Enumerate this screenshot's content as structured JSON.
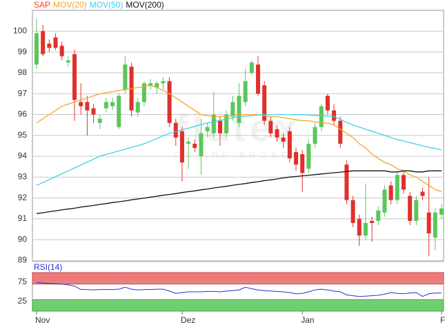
{
  "chart_data": {
    "type": "candlestick",
    "categories": [
      "Nov",
      null,
      null,
      null,
      null,
      null,
      null,
      null,
      null,
      null,
      null,
      null,
      null,
      null,
      null,
      null,
      null,
      null,
      null,
      null,
      null,
      null,
      null,
      "Dez",
      null,
      null,
      null,
      null,
      null,
      null,
      null,
      null,
      null,
      null,
      null,
      null,
      null,
      null,
      null,
      null,
      null,
      null,
      "Jan",
      null,
      null,
      null,
      null,
      null,
      null,
      null,
      null,
      null,
      null,
      null,
      null,
      null,
      null,
      null,
      null,
      null,
      null,
      null,
      null,
      null,
      "F"
    ],
    "candles": {
      "name": "SAP",
      "color": "#ff3b1f",
      "up_color": "#5cc65c",
      "down_color": "#e0302c",
      "open": [
        98.4,
        100.0,
        99.4,
        99.7,
        99.3,
        98.5,
        98.9,
        96.6,
        96.6,
        96.3,
        95.6,
        96.3,
        96.4,
        95.4,
        97.2,
        98.3,
        96.1,
        96.6,
        97.4,
        97.3,
        97.5,
        97.6,
        95.6,
        95.2,
        94.6,
        94.6,
        94.0,
        95.2,
        95.1,
        95.7,
        95.1,
        95.9,
        95.6,
        96.6,
        98.0,
        98.4,
        97.4,
        95.7,
        95.3,
        94.9,
        95.2,
        94.2,
        94.1,
        93.4,
        94.6,
        95.4,
        96.9,
        96.2,
        95.7,
        93.6,
        91.9,
        91.0,
        90.2,
        90.9,
        90.9,
        91.3,
        92.6,
        91.9,
        93.1,
        92.1,
        90.9,
        92.3,
        91.3,
        90.1,
        91.2
      ],
      "high": [
        100.6,
        100.3,
        99.6,
        99.9,
        99.5,
        98.8,
        99.1,
        97.5,
        96.9,
        96.5,
        96.0,
        96.8,
        96.8,
        97.0,
        98.8,
        98.5,
        96.8,
        97.6,
        97.7,
        97.6,
        97.8,
        97.8,
        95.8,
        95.4,
        94.9,
        94.8,
        95.8,
        95.6,
        97.1,
        95.9,
        96.2,
        96.9,
        97.5,
        98.2,
        98.6,
        98.8,
        97.6,
        95.9,
        95.5,
        95.1,
        95.4,
        94.4,
        94.3,
        94.8,
        95.6,
        96.5,
        97.0,
        96.5,
        95.9,
        93.8,
        92.1,
        91.2,
        92.7,
        91.1,
        91.6,
        92.6,
        92.8,
        93.3,
        93.3,
        92.3,
        92.1,
        92.5,
        93.0,
        91.5,
        91.7
      ],
      "low": [
        98.2,
        98.8,
        99.0,
        99.1,
        98.6,
        98.3,
        95.7,
        96.0,
        95.0,
        95.6,
        95.3,
        96.1,
        96.2,
        95.3,
        97.0,
        95.9,
        95.9,
        96.4,
        97.2,
        97.0,
        97.2,
        95.4,
        94.5,
        92.8,
        93.4,
        94.2,
        93.1,
        94.9,
        94.9,
        94.5,
        94.9,
        95.7,
        95.4,
        96.4,
        97.9,
        96.9,
        95.5,
        94.9,
        94.7,
        94.4,
        93.7,
        93.3,
        92.3,
        93.2,
        94.4,
        95.2,
        96.0,
        95.5,
        94.4,
        91.7,
        90.6,
        89.7,
        90.0,
        89.9,
        90.7,
        91.1,
        91.7,
        91.7,
        92.2,
        90.7,
        90.7,
        91.9,
        89.2,
        89.5,
        91.0
      ],
      "close": [
        99.9,
        98.9,
        99.2,
        99.2,
        98.8,
        98.6,
        96.7,
        96.4,
        96.2,
        96.0,
        95.8,
        96.6,
        96.6,
        96.9,
        98.4,
        96.2,
        96.6,
        97.5,
        97.5,
        97.5,
        97.6,
        95.6,
        94.9,
        93.7,
        94.7,
        94.4,
        95.1,
        95.4,
        96.0,
        95.1,
        96.0,
        96.6,
        96.9,
        97.6,
        98.5,
        97.0,
        95.7,
        95.1,
        94.9,
        94.7,
        93.9,
        93.6,
        93.2,
        94.6,
        95.4,
        96.4,
        96.2,
        95.7,
        94.6,
        91.9,
        90.8,
        90.2,
        90.8,
        90.8,
        91.4,
        92.4,
        91.9,
        93.1,
        92.4,
        90.9,
        91.9,
        92.1,
        90.3,
        91.3,
        91.5
      ]
    },
    "series": [
      {
        "name": "MOV(20)",
        "color": "#f5a623",
        "values": [
          95.6,
          95.8,
          96.0,
          96.2,
          96.4,
          96.5,
          96.6,
          96.7,
          96.8,
          96.9,
          97.0,
          97.05,
          97.1,
          97.15,
          97.2,
          97.25,
          97.3,
          97.35,
          97.4,
          97.3,
          97.15,
          97.0,
          96.8,
          96.6,
          96.4,
          96.2,
          96.0,
          95.95,
          95.9,
          95.9,
          95.9,
          95.95,
          96.0,
          96.0,
          96.0,
          96.0,
          95.95,
          95.9,
          95.9,
          95.85,
          95.8,
          95.75,
          95.7,
          95.7,
          95.65,
          95.6,
          95.6,
          95.5,
          95.3,
          95.1,
          94.9,
          94.6,
          94.4,
          94.1,
          93.9,
          93.7,
          93.6,
          93.4,
          93.3,
          93.1,
          93.0,
          92.8,
          92.6,
          92.4,
          92.3
        ]
      },
      {
        "name": "MOV(50)",
        "color": "#3fd0e8",
        "values": [
          92.6,
          92.74,
          92.88,
          93.02,
          93.16,
          93.3,
          93.44,
          93.58,
          93.72,
          93.86,
          94.0,
          94.09,
          94.17,
          94.26,
          94.34,
          94.43,
          94.51,
          94.6,
          94.72,
          94.85,
          94.98,
          95.1,
          95.18,
          95.27,
          95.35,
          95.43,
          95.52,
          95.6,
          95.66,
          95.72,
          95.78,
          95.84,
          95.9,
          95.93,
          95.95,
          95.98,
          96.0,
          96.0,
          96.0,
          96.0,
          96.0,
          96.0,
          96.0,
          95.98,
          95.96,
          95.94,
          95.92,
          95.9,
          95.77,
          95.63,
          95.5,
          95.4,
          95.3,
          95.2,
          95.1,
          95.0,
          94.9,
          94.8,
          94.73,
          94.65,
          94.58,
          94.5,
          94.43,
          94.37,
          94.3
        ]
      },
      {
        "name": "MOV(200)",
        "color": "#111111",
        "values": [
          91.25,
          91.29,
          91.34,
          91.38,
          91.43,
          91.47,
          91.51,
          91.56,
          91.6,
          91.64,
          91.69,
          91.73,
          91.78,
          91.82,
          91.86,
          91.91,
          91.95,
          91.99,
          92.04,
          92.08,
          92.13,
          92.17,
          92.21,
          92.26,
          92.3,
          92.34,
          92.39,
          92.43,
          92.48,
          92.52,
          92.56,
          92.61,
          92.65,
          92.69,
          92.74,
          92.78,
          92.83,
          92.87,
          92.91,
          92.96,
          93.0,
          93.03,
          93.06,
          93.09,
          93.12,
          93.15,
          93.18,
          93.21,
          93.24,
          93.27,
          93.3,
          93.3,
          93.3,
          93.3,
          93.3,
          93.3,
          93.25,
          93.25,
          93.3,
          93.3,
          93.25,
          93.25,
          93.3,
          93.3,
          93.3
        ]
      }
    ],
    "ylim": [
      88.95,
      101.0
    ],
    "yticks": [
      89,
      90,
      91,
      92,
      93,
      94,
      95,
      96,
      97,
      98,
      99,
      100
    ],
    "grid": true,
    "rsi": {
      "name": "RSI(14)",
      "color": "#2b2bd6",
      "values": [
        75,
        73,
        72,
        71,
        70,
        68,
        65,
        56,
        56,
        55,
        56,
        56,
        56,
        57,
        62,
        57,
        55,
        56,
        56,
        57,
        57,
        52,
        46,
        48,
        50,
        50,
        50,
        51,
        51,
        50,
        52,
        53,
        55,
        62,
        58,
        55,
        53,
        52,
        51,
        50,
        48,
        45,
        46,
        50,
        55,
        57,
        55,
        52,
        50,
        42,
        40,
        38,
        39,
        40,
        41,
        44,
        48,
        46,
        45,
        47,
        48,
        38,
        45,
        47,
        47
      ],
      "ylim": [
        0,
        100
      ],
      "yticks": [
        25,
        75
      ],
      "upper": 70,
      "lower": 30,
      "upper_color": "#f07a7a",
      "lower_color": "#6fcf6f"
    },
    "watermark": "flatex",
    "watermark_sub": "ONLINE BROKER"
  }
}
